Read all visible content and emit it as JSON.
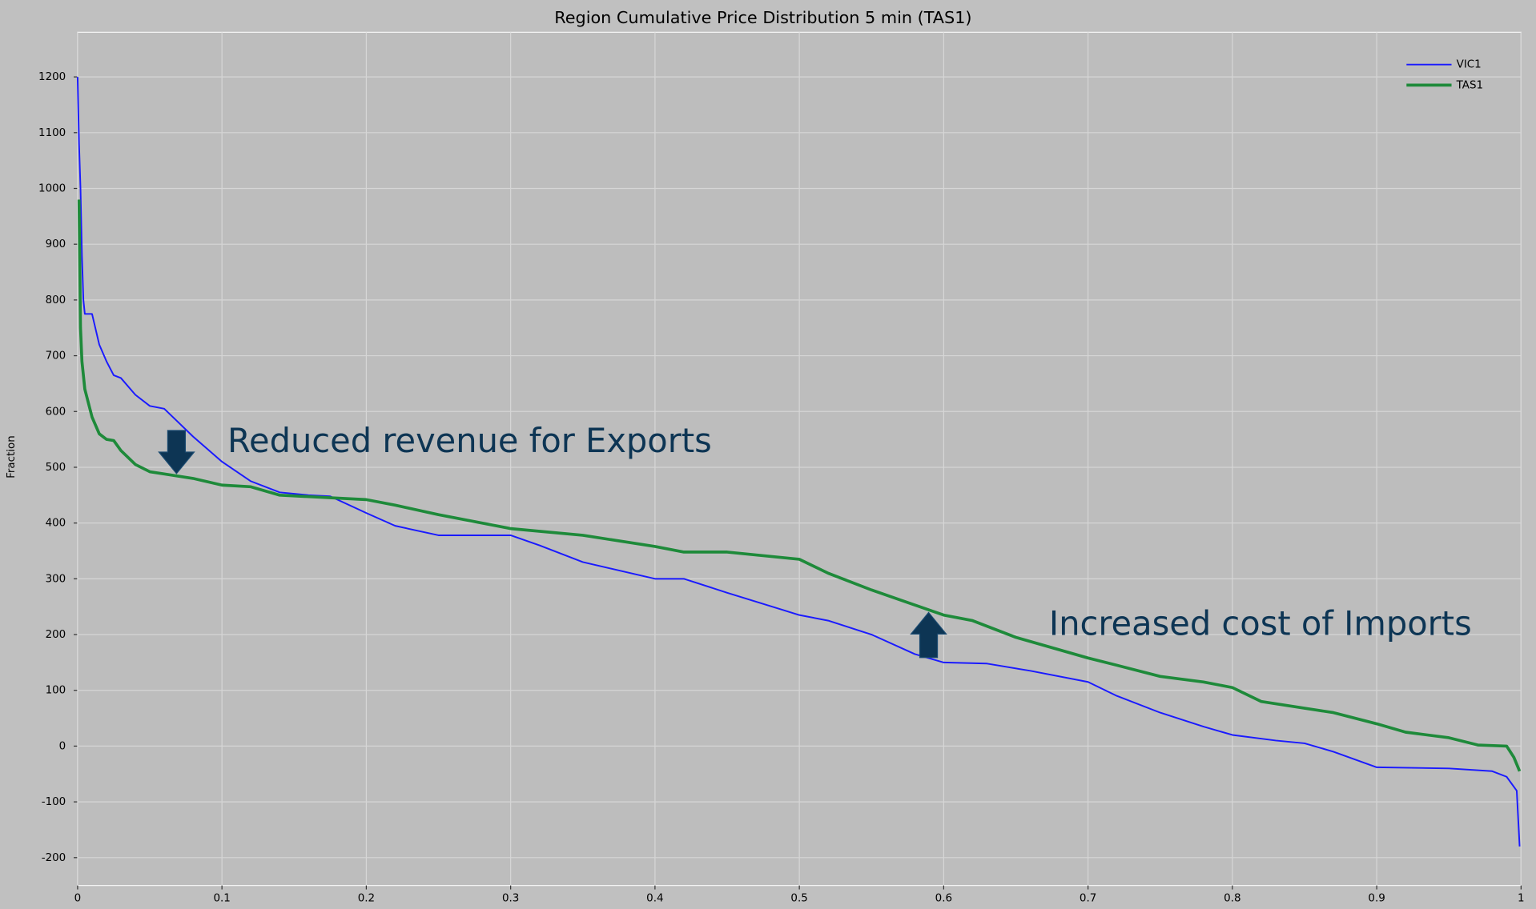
{
  "chart_data": {
    "type": "line",
    "title": "Region Cumulative Price Distribution 5 min (TAS1)",
    "ylabel": "Fraction",
    "xlim": [
      0,
      1
    ],
    "ylim": [
      -250,
      1280
    ],
    "xticks": [
      0,
      0.1,
      0.2,
      0.3,
      0.4,
      0.5,
      0.6,
      0.7,
      0.8,
      0.9,
      1
    ],
    "yticks": [
      -200,
      -100,
      0,
      100,
      200,
      300,
      400,
      500,
      600,
      700,
      800,
      900,
      1000,
      1100,
      1200
    ],
    "grid": true,
    "legend": "upper right",
    "annotations": [
      "Reduced revenue for Exports",
      "Increased cost of Imports"
    ],
    "series": [
      {
        "name": "VIC1",
        "color": "#1a1aff",
        "x": [
          0,
          0.001,
          0.002,
          0.003,
          0.004,
          0.005,
          0.01,
          0.015,
          0.02,
          0.025,
          0.03,
          0.04,
          0.05,
          0.06,
          0.07,
          0.08,
          0.1,
          0.12,
          0.14,
          0.16,
          0.175,
          0.2,
          0.22,
          0.25,
          0.3,
          0.32,
          0.35,
          0.4,
          0.42,
          0.45,
          0.5,
          0.52,
          0.55,
          0.58,
          0.6,
          0.63,
          0.66,
          0.7,
          0.72,
          0.75,
          0.78,
          0.8,
          0.83,
          0.85,
          0.87,
          0.9,
          0.95,
          0.98,
          0.99,
          0.997,
          0.999
        ],
        "values": [
          1200,
          1080,
          1000,
          880,
          800,
          775,
          775,
          720,
          690,
          665,
          660,
          630,
          610,
          605,
          580,
          555,
          510,
          475,
          455,
          450,
          448,
          418,
          395,
          378,
          378,
          360,
          330,
          300,
          300,
          275,
          235,
          225,
          200,
          165,
          150,
          148,
          135,
          115,
          90,
          60,
          35,
          20,
          10,
          5,
          -10,
          -38,
          -40,
          -45,
          -55,
          -80,
          -180
        ]
      },
      {
        "name": "TAS1",
        "color": "#1e8a3a",
        "x": [
          0.001,
          0.002,
          0.003,
          0.005,
          0.01,
          0.015,
          0.02,
          0.025,
          0.03,
          0.04,
          0.05,
          0.06,
          0.08,
          0.1,
          0.12,
          0.14,
          0.2,
          0.22,
          0.25,
          0.3,
          0.35,
          0.4,
          0.42,
          0.45,
          0.5,
          0.52,
          0.55,
          0.6,
          0.62,
          0.65,
          0.7,
          0.72,
          0.75,
          0.78,
          0.8,
          0.82,
          0.85,
          0.87,
          0.9,
          0.92,
          0.95,
          0.97,
          0.99,
          0.995,
          0.999
        ],
        "values": [
          980,
          750,
          690,
          640,
          590,
          560,
          550,
          548,
          530,
          505,
          492,
          488,
          480,
          468,
          465,
          450,
          442,
          432,
          415,
          390,
          378,
          358,
          348,
          348,
          335,
          310,
          280,
          235,
          225,
          195,
          158,
          145,
          125,
          115,
          105,
          80,
          68,
          60,
          40,
          25,
          15,
          2,
          0,
          -20,
          -45
        ]
      }
    ]
  }
}
